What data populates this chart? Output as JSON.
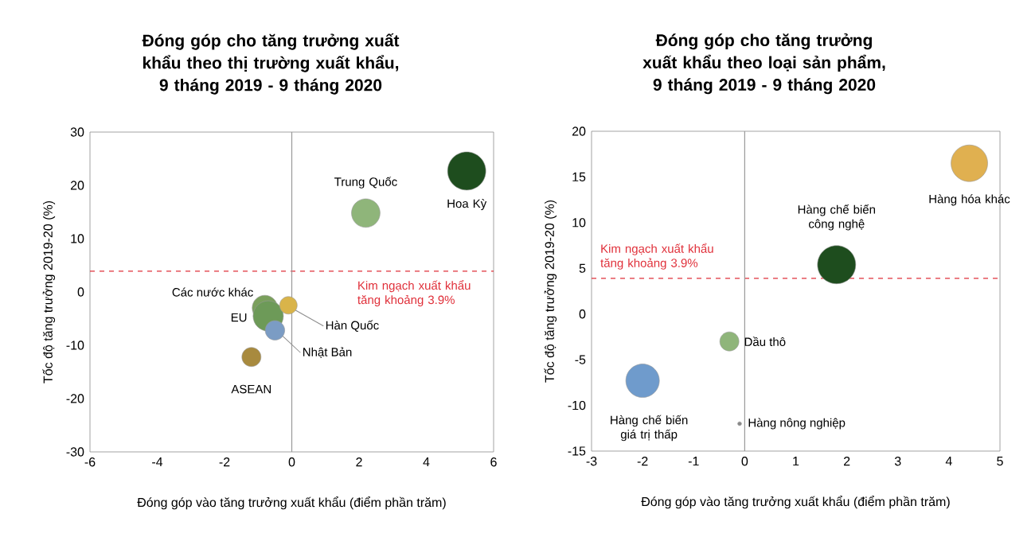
{
  "chart_data": [
    {
      "type": "bubble",
      "title": "Đóng góp cho tăng trưởng xuất khẩu theo thị trường xuất khẩu, 9 tháng 2019 - 9 tháng 2020",
      "xlabel": "Đóng góp vào tăng trưởng xuất khẩu (điểm phần trăm)",
      "ylabel": "Tốc độ tăng trưởng 2019-20 (%)",
      "xlim": [
        -6,
        6
      ],
      "ylim": [
        -30,
        30
      ],
      "xticks": [
        -6,
        -4,
        -2,
        0,
        2,
        4,
        6
      ],
      "yticks": [
        -30,
        -20,
        -10,
        0,
        10,
        20,
        30
      ],
      "ref_lines": [
        {
          "axis": "y",
          "value": 3.9,
          "label": "Kim ngạch xuất khẩu tăng khoảng 3.9%",
          "color": "#e0303a",
          "line_style": "dashed"
        },
        {
          "axis": "x",
          "value": 0,
          "color": "#999999"
        }
      ],
      "series": [
        {
          "name": "Hoa Kỳ",
          "color": "#1e4d1e",
          "x": [
            5.2
          ],
          "values": [
            22.7
          ],
          "sizes": [
            1
          ]
        },
        {
          "name": "Trung Quốc",
          "color": "#8fb57a",
          "x": [
            2.2
          ],
          "values": [
            14.8
          ],
          "sizes": [
            0.56
          ]
        },
        {
          "name": "Các nước khác",
          "color": "#7aa05c",
          "x": [
            -0.8
          ],
          "values": [
            -3
          ],
          "sizes": [
            0.44
          ]
        },
        {
          "name": "EU",
          "color": "#6d9a58",
          "x": [
            -0.7
          ],
          "values": [
            -4.5
          ],
          "sizes": [
            0.63
          ]
        },
        {
          "name": "Hàn Quốc",
          "color": "#d9b44a",
          "x": [
            -0.1
          ],
          "values": [
            -2.5
          ],
          "sizes": [
            0.21
          ]
        },
        {
          "name": "Nhật Bản",
          "color": "#7b9cc4",
          "x": [
            -0.5
          ],
          "values": [
            -7.2
          ],
          "sizes": [
            0.26
          ]
        },
        {
          "name": "ASEAN",
          "color": "#a88a3e",
          "x": [
            -1.2
          ],
          "values": [
            -12.2
          ],
          "sizes": [
            0.25
          ]
        }
      ]
    },
    {
      "type": "bubble",
      "title": "Đóng góp cho tăng trưởng xuất khẩu theo loại sản phẩm, 9 tháng 2019 - 9 tháng 2020",
      "xlabel": "Đóng góp vào tăng trưởng xuất khẩu (điểm phần trăm)",
      "ylabel": "Tốc độ tăng trưởng 2019-20 (%)",
      "xlim": [
        -3,
        5
      ],
      "ylim": [
        -15,
        20
      ],
      "xticks": [
        -3,
        -2,
        -1,
        0,
        1,
        2,
        3,
        4,
        5
      ],
      "yticks": [
        -15,
        -10,
        -5,
        0,
        5,
        10,
        15,
        20
      ],
      "ref_lines": [
        {
          "axis": "y",
          "value": 3.9,
          "label": "Kim ngạch xuất khẩu tăng khoảng 3.9%",
          "color": "#e0303a",
          "line_style": "dashed"
        },
        {
          "axis": "x",
          "value": 0,
          "color": "#999999"
        }
      ],
      "series": [
        {
          "name": "Hàng chế biến công nghệ",
          "color": "#1e4d1e",
          "x": [
            1.8
          ],
          "values": [
            5.4
          ],
          "sizes": [
            1
          ]
        },
        {
          "name": "Hàng hóa khác",
          "color": "#e0b050",
          "x": [
            4.4
          ],
          "values": [
            16.5
          ],
          "sizes": [
            0.92
          ]
        },
        {
          "name": "Dầu thô",
          "color": "#8fb57a",
          "x": [
            -0.3
          ],
          "values": [
            -3
          ],
          "sizes": [
            0.25
          ]
        },
        {
          "name": "Hàng chế biến giá trị thấp",
          "color": "#6f9bcc",
          "x": [
            -2
          ],
          "values": [
            -7.3
          ],
          "sizes": [
            0.77
          ]
        },
        {
          "name": "Hàng nông nghiệp",
          "color": "#888888",
          "x": [
            -0.1
          ],
          "values": [
            -12
          ],
          "sizes": [
            0.01
          ]
        }
      ]
    }
  ]
}
